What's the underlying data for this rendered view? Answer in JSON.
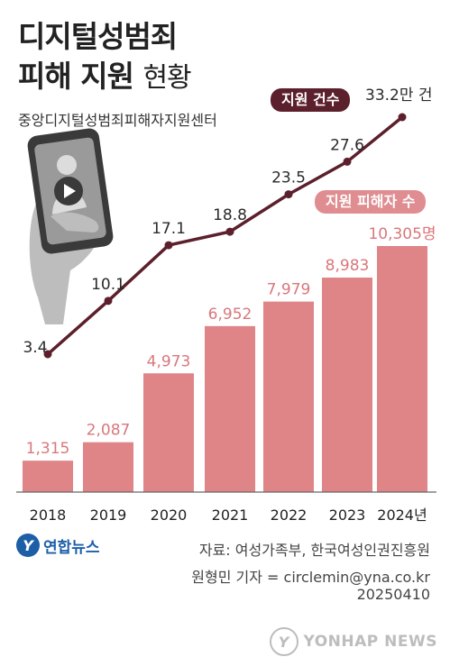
{
  "header": {
    "title_line1": "디지털성범죄",
    "title_line2_bold": "피해 지원",
    "title_line2_light": "현황",
    "source_org": "중앙디지털성범죄피해자지원센터"
  },
  "legend": {
    "cases_label": "지원 건수",
    "victims_label": "지원 피해자 수"
  },
  "chart_data": {
    "type": "bar",
    "categories": [
      "2018",
      "2019",
      "2020",
      "2021",
      "2022",
      "2023",
      "2024년"
    ],
    "series": [
      {
        "name": "지원 피해자 수",
        "chart": "bar",
        "values": [
          1315,
          2087,
          4973,
          6952,
          7979,
          8983,
          10305
        ],
        "labels": [
          "1,315",
          "2,087",
          "4,973",
          "6,952",
          "7,979",
          "8,983",
          "10,305명"
        ],
        "color": "#df8487"
      },
      {
        "name": "지원 건수",
        "chart": "line",
        "values": [
          3.4,
          10.1,
          17.1,
          18.8,
          23.5,
          27.6,
          33.2
        ],
        "labels": [
          "3.4",
          "10.1",
          "17.1",
          "18.8",
          "23.5",
          "27.6",
          "33.2만 건"
        ],
        "color": "#5c1f2c"
      }
    ],
    "grid": false,
    "legend": "top-right"
  },
  "footer": {
    "source": "자료: 여성가족부, 한국여성인권진흥원",
    "reporter": "원형민 기자 = circlemin@yna.co.kr",
    "date": "20250410",
    "logo_text": "연합뉴스",
    "watermark_text": "YONHAP NEWS"
  },
  "colors": {
    "bar": "#df8487",
    "line": "#5c1f2c",
    "label_bar": "#d9777b",
    "logo": "#1d5fa7"
  },
  "icons": {
    "phone_illustration": "hand-holding-phone-with-play-icon"
  }
}
